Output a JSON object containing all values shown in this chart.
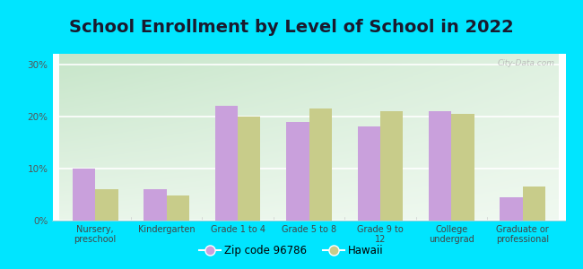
{
  "title": "School Enrollment by Level of School in 2022",
  "categories": [
    "Nursery,\npreschool",
    "Kindergarten",
    "Grade 1 to 4",
    "Grade 5 to 8",
    "Grade 9 to\n12",
    "College\nundergrad",
    "Graduate or\nprofessional"
  ],
  "zip_values": [
    10.0,
    6.0,
    22.0,
    19.0,
    18.0,
    21.0,
    4.5
  ],
  "hawaii_values": [
    6.0,
    4.8,
    20.0,
    21.5,
    21.0,
    20.5,
    6.5
  ],
  "zip_color": "#c9a0dc",
  "hawaii_color": "#c8cc8a",
  "background_outer": "#00e5ff",
  "bg_grad_top_left": "#c8e6c9",
  "bg_grad_right": "#f5f5f0",
  "ylim": [
    0,
    32
  ],
  "yticks": [
    0,
    10,
    20,
    30
  ],
  "ytick_labels": [
    "0%",
    "10%",
    "20%",
    "30%"
  ],
  "zip_label": "Zip code 96786",
  "hawaii_label": "Hawaii",
  "title_fontsize": 14,
  "watermark": "City-Data.com"
}
